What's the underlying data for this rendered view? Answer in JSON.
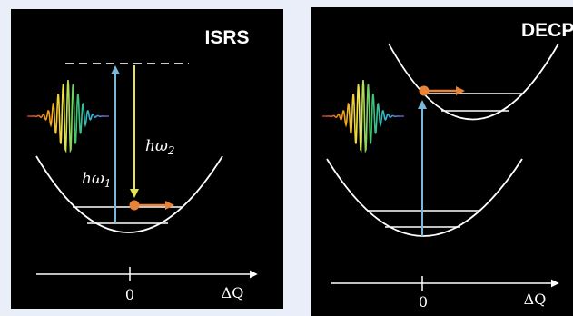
{
  "panels": [
    {
      "title": "ISRS",
      "labels": [
        {
          "base": "hω",
          "sub": "2"
        },
        {
          "base": "hω",
          "sub": "1"
        }
      ],
      "axis": {
        "origin": "0",
        "label": "ΔQ"
      }
    },
    {
      "title": "DECP",
      "axis": {
        "origin": "0",
        "label": "ΔQ"
      }
    }
  ]
}
